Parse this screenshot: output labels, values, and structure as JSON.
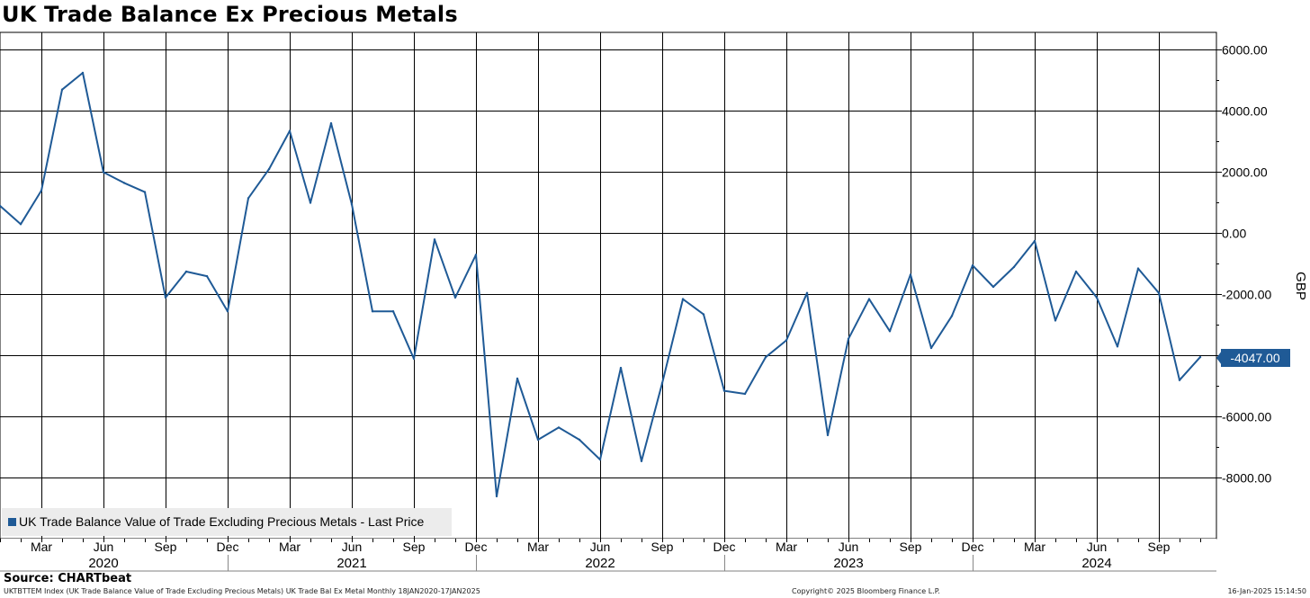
{
  "title": "UK Trade Balance Ex Precious Metals",
  "chart_data": {
    "type": "line",
    "title": "UK Trade Balance Ex Precious Metals",
    "ylabel": "GBP",
    "xlabel": "",
    "ylim": [
      -9850,
      6500
    ],
    "yticks": [
      6000,
      4000,
      2000,
      0,
      -2000,
      -4000,
      -6000,
      -8000
    ],
    "ytick_labels": [
      "6000.00",
      "4000.00",
      "2000.00",
      "0.00",
      "-2000.00",
      "-4000.00",
      "-6000.00",
      "-8000.00"
    ],
    "grid": true,
    "legend_position": "bottom-left",
    "last_price_label": "-4047.00",
    "series": [
      {
        "name": "UK Trade Balance Value of Trade Excluding Precious Metals - Last Price",
        "color": "#1f5a96",
        "x": [
          "2020-01",
          "2020-02",
          "2020-03",
          "2020-04",
          "2020-05",
          "2020-06",
          "2020-07",
          "2020-08",
          "2020-09",
          "2020-10",
          "2020-11",
          "2020-12",
          "2021-01",
          "2021-02",
          "2021-03",
          "2021-04",
          "2021-05",
          "2021-06",
          "2021-07",
          "2021-08",
          "2021-09",
          "2021-10",
          "2021-11",
          "2021-12",
          "2022-01",
          "2022-02",
          "2022-03",
          "2022-04",
          "2022-05",
          "2022-06",
          "2022-07",
          "2022-08",
          "2022-09",
          "2022-10",
          "2022-11",
          "2022-12",
          "2023-01",
          "2023-02",
          "2023-03",
          "2023-04",
          "2023-05",
          "2023-06",
          "2023-07",
          "2023-08",
          "2023-09",
          "2023-10",
          "2023-11",
          "2023-12",
          "2024-01",
          "2024-02",
          "2024-03",
          "2024-04",
          "2024-05",
          "2024-06",
          "2024-07",
          "2024-08",
          "2024-09",
          "2024-10",
          "2024-11"
        ],
        "values": [
          900,
          300,
          1400,
          4700,
          5250,
          2000,
          1650,
          1350,
          -2100,
          -1250,
          -1400,
          -2550,
          1150,
          2100,
          3350,
          1000,
          3600,
          950,
          -2550,
          -2550,
          -4100,
          -200,
          -2100,
          -700,
          -8600,
          -4750,
          -6750,
          -6350,
          -6750,
          -7400,
          -4400,
          -7450,
          -4900,
          -2150,
          -2650,
          -5150,
          -5250,
          -4050,
          -3500,
          -1950,
          -6600,
          -3450,
          -2150,
          -3200,
          -1350,
          -3750,
          -2700,
          -1050,
          -1750,
          -1100,
          -250,
          -2850,
          -1250,
          -2100,
          -3700,
          -1150,
          -1950,
          -4800,
          -4047
        ]
      }
    ],
    "x_month_labels": [
      "Mar",
      "Jun",
      "Sep",
      "Dec",
      "Mar",
      "Jun",
      "Sep",
      "Dec",
      "Mar",
      "Jun",
      "Sep",
      "Dec",
      "Mar",
      "Jun",
      "Sep",
      "Dec",
      "Mar",
      "Jun",
      "Sep"
    ],
    "x_month_index": [
      2,
      5,
      8,
      11,
      14,
      17,
      20,
      23,
      26,
      29,
      32,
      35,
      38,
      41,
      44,
      47,
      50,
      53,
      56
    ],
    "x_year_labels": [
      "2020",
      "2021",
      "2022",
      "2023",
      "2024"
    ],
    "x_year_index": [
      5,
      17,
      29,
      41,
      53
    ],
    "x_year_divider_index": [
      11,
      23,
      35,
      47
    ]
  },
  "source": "Source: CHARTbeat",
  "footer": {
    "left": "UKTBTTEM Index (UK Trade Balance Value  of Trade Excluding Precious Metals) UK Trade Bal Ex Metal  Monthly 18JAN2020-17JAN2025",
    "middle": "Copyright© 2025 Bloomberg Finance L.P.",
    "right": "16-Jan-2025 15:14:50"
  }
}
